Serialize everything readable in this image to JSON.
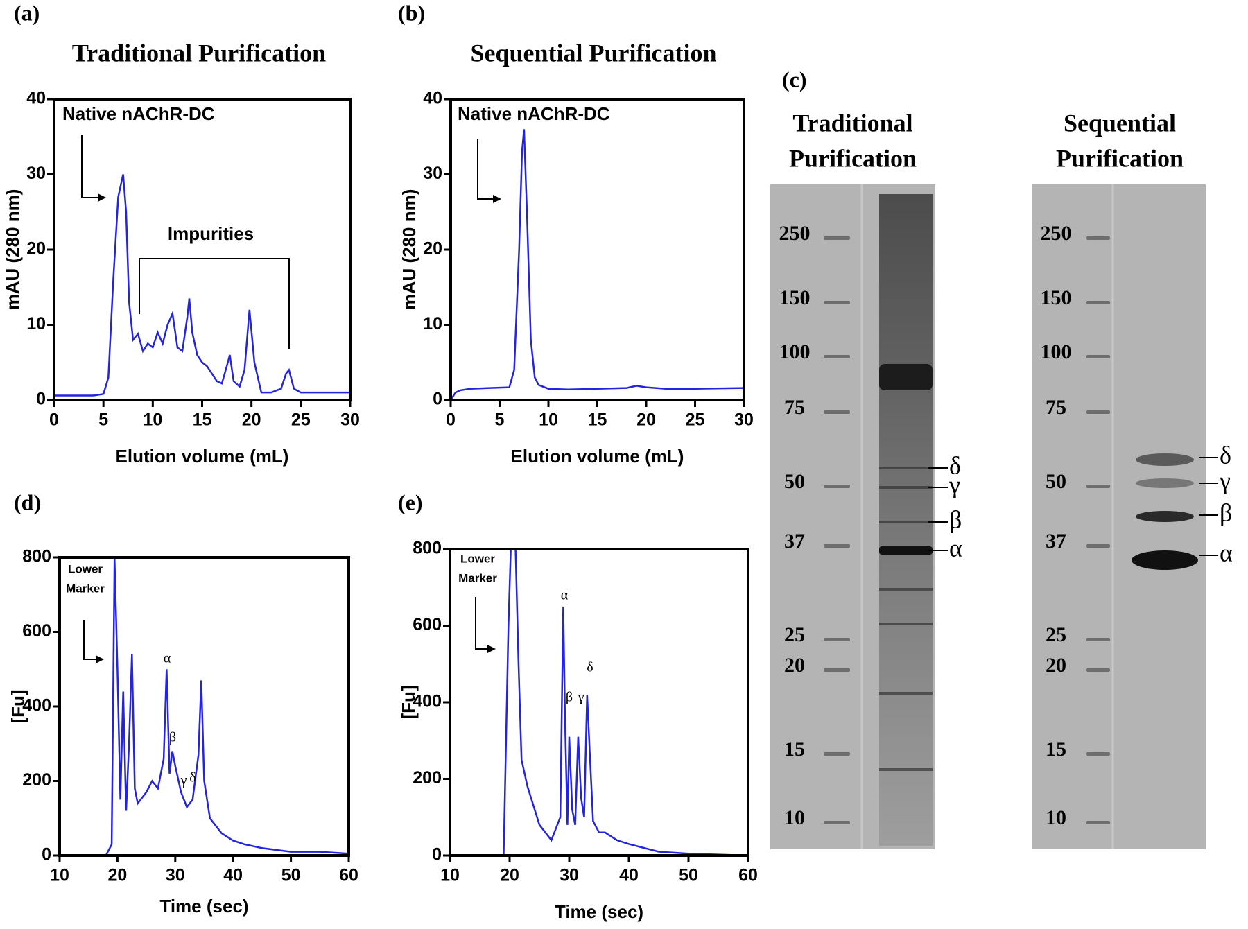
{
  "chart_data": [
    {
      "type": "line",
      "panel": "(a)",
      "title": "Traditional Purification",
      "xlabel": "Elution volume (mL)",
      "ylabel": "mAU (280 nm)",
      "x": [
        0,
        2,
        4,
        5,
        5.5,
        6,
        6.5,
        7,
        7.3,
        7.6,
        8,
        8.5,
        9,
        9.5,
        10,
        10.5,
        11,
        11.5,
        12,
        12.5,
        13,
        13.5,
        13.7,
        14,
        14.5,
        15,
        15.5,
        16,
        16.5,
        17,
        17.5,
        17.8,
        18.2,
        18.8,
        19.3,
        19.8,
        20.3,
        21,
        22,
        23,
        23.5,
        23.8,
        24.3,
        25,
        27,
        30
      ],
      "series": [
        {
          "color": "#2323e0",
          "values": [
            0.6,
            0.6,
            0.6,
            0.8,
            3,
            16,
            27,
            30,
            25,
            13,
            8,
            8.8,
            6.5,
            7.5,
            7,
            9,
            7.5,
            10,
            11.5,
            7,
            6.5,
            11,
            13.5,
            9,
            6,
            5,
            4.5,
            3.5,
            2.5,
            2.2,
            4.5,
            6,
            2.5,
            1.8,
            4,
            12,
            5,
            1,
            1,
            1.5,
            3.5,
            4,
            1.5,
            1,
            1,
            1
          ]
        }
      ],
      "xlim": [
        0,
        30
      ],
      "ylim": [
        0,
        40
      ],
      "xticks": [
        0,
        5,
        10,
        15,
        20,
        25,
        30
      ],
      "yticks": [
        0,
        10,
        20,
        30,
        40
      ],
      "annotations": [
        "Native nAChR-DC",
        "Impurities"
      ]
    },
    {
      "type": "line",
      "panel": "(b)",
      "title": "Sequential Purification",
      "xlabel": "Elution volume (mL)",
      "ylabel": "mAU (280 nm)",
      "x": [
        0,
        0.5,
        1,
        2,
        4,
        6,
        6.5,
        7,
        7.3,
        7.5,
        7.8,
        8.2,
        8.6,
        9,
        10,
        12,
        15,
        18,
        19,
        20,
        22,
        25,
        30
      ],
      "series": [
        {
          "color": "#2323e0",
          "values": [
            0,
            1,
            1.3,
            1.5,
            1.6,
            1.7,
            4,
            20,
            33,
            36,
            25,
            8,
            3,
            2,
            1.5,
            1.4,
            1.5,
            1.6,
            1.9,
            1.7,
            1.5,
            1.5,
            1.6
          ]
        }
      ],
      "xlim": [
        0,
        30
      ],
      "ylim": [
        0,
        40
      ],
      "xticks": [
        0,
        5,
        10,
        15,
        20,
        25,
        30
      ],
      "yticks": [
        0,
        10,
        20,
        30,
        40
      ],
      "annotations": [
        "Native nAChR-DC"
      ]
    },
    {
      "type": "line",
      "panel": "(d)",
      "xlabel": "Time (sec)",
      "ylabel": "[Fu]",
      "x": [
        10,
        15,
        18,
        19,
        19.5,
        20,
        20.5,
        21,
        21.5,
        22,
        22.5,
        23,
        23.5,
        24,
        25,
        26,
        27,
        28,
        28.5,
        29,
        29.5,
        30,
        31,
        32,
        33,
        34,
        34.5,
        35,
        36,
        38,
        40,
        42,
        45,
        50,
        55,
        60
      ],
      "series": [
        {
          "color": "#2323e0",
          "values": [
            0,
            0,
            0,
            30,
            800,
            500,
            150,
            440,
            120,
            300,
            540,
            180,
            140,
            150,
            170,
            200,
            180,
            260,
            500,
            220,
            280,
            240,
            170,
            130,
            150,
            270,
            470,
            200,
            100,
            60,
            40,
            30,
            20,
            10,
            10,
            5
          ]
        }
      ],
      "xlim": [
        10,
        60
      ],
      "ylim": [
        0,
        800
      ],
      "xticks": [
        10,
        20,
        30,
        40,
        50,
        60
      ],
      "yticks": [
        0,
        200,
        400,
        600,
        800
      ],
      "annotations": [
        "Lower",
        "Marker",
        "α",
        "β",
        "γ",
        "δ"
      ]
    },
    {
      "type": "line",
      "panel": "(e)",
      "xlabel": "Time (sec)",
      "ylabel": "[Fu]",
      "x": [
        10,
        15,
        19,
        19.8,
        20.2,
        21,
        21.5,
        22,
        23,
        25,
        27,
        28.5,
        29,
        29.3,
        29.7,
        30,
        30.5,
        31,
        31.5,
        32,
        32.5,
        33,
        33.5,
        34,
        35,
        36,
        38,
        40,
        45,
        50,
        60
      ],
      "series": [
        {
          "color": "#2323e0",
          "values": [
            0,
            0,
            0,
            600,
            800,
            800,
            500,
            250,
            180,
            80,
            40,
            100,
            650,
            350,
            80,
            310,
            120,
            80,
            310,
            150,
            100,
            420,
            250,
            90,
            60,
            60,
            40,
            30,
            10,
            5,
            0
          ]
        }
      ],
      "xlim": [
        10,
        60
      ],
      "ylim": [
        0,
        800
      ],
      "xticks": [
        10,
        20,
        30,
        40,
        50,
        60
      ],
      "yticks": [
        0,
        200,
        400,
        600,
        800
      ],
      "annotations": [
        "Lower",
        "Marker",
        "α",
        "β",
        "γ",
        "δ"
      ]
    }
  ],
  "gel_panel": {
    "label": "(c)",
    "gels": [
      {
        "title": [
          "Traditional",
          "Purification"
        ],
        "markers": [
          "250",
          "150",
          "100",
          "75",
          "50",
          "37",
          "25",
          "20",
          "15",
          "10"
        ],
        "bands": [
          "δ",
          "γ",
          "β",
          "α"
        ]
      },
      {
        "title": [
          "Sequential",
          "Purification"
        ],
        "markers": [
          "250",
          "150",
          "100",
          "75",
          "50",
          "37",
          "25",
          "20",
          "15",
          "10"
        ],
        "bands": [
          "δ",
          "γ",
          "β",
          "α"
        ]
      }
    ]
  }
}
